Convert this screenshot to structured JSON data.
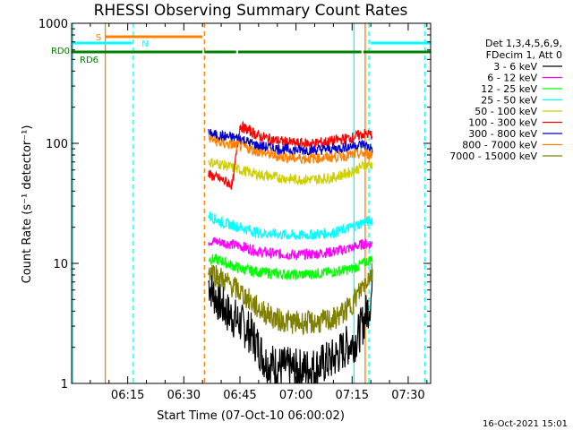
{
  "chart_data": {
    "type": "line",
    "title": "RHESSI Observing Summary Count Rates",
    "xlabel": "Start Time (07-Oct-10 06:00:02)",
    "ylabel": "Count Rate (s⁻¹ detector⁻¹)",
    "y_scale": "log",
    "ylim": [
      1,
      1000
    ],
    "xlim_minutes": [
      0,
      96
    ],
    "y_ticks": [
      {
        "value": 1,
        "label": "1"
      },
      {
        "value": 10,
        "label": "10"
      },
      {
        "value": 100,
        "label": "100"
      },
      {
        "value": 1000,
        "label": "1000"
      }
    ],
    "x_ticks": [
      {
        "value": 15,
        "label": "06:15"
      },
      {
        "value": 30,
        "label": "06:30"
      },
      {
        "value": 45,
        "label": "06:45"
      },
      {
        "value": 60,
        "label": "07:00"
      },
      {
        "value": 75,
        "label": "07:15"
      },
      {
        "value": 90,
        "label": "07:30"
      }
    ],
    "legend_header": [
      "Det 1,3,4,5,6,9,",
      "FDecim 1, Att 0"
    ],
    "legend_placement": "right",
    "series": [
      {
        "name": "3 - 6 keV",
        "color": "#000000",
        "points": [
          [
            36.6,
            7
          ],
          [
            38,
            5.5
          ],
          [
            40,
            4.5
          ],
          [
            42,
            3.8
          ],
          [
            45,
            3.2
          ],
          [
            48,
            2.6
          ],
          [
            50,
            2.0
          ],
          [
            52,
            1.5
          ],
          [
            55,
            1.4
          ],
          [
            60,
            1.3
          ],
          [
            65,
            1.35
          ],
          [
            70,
            1.6
          ],
          [
            74,
            2.1
          ],
          [
            76,
            2.3
          ],
          [
            78,
            3.2
          ],
          [
            79,
            4
          ],
          [
            80,
            5
          ],
          [
            80.5,
            6.5
          ]
        ]
      },
      {
        "name": "6 - 12 keV",
        "color": "#ff00ff",
        "points": [
          [
            36.6,
            15.5
          ],
          [
            40,
            15
          ],
          [
            45,
            14
          ],
          [
            50,
            12.5
          ],
          [
            55,
            12
          ],
          [
            60,
            11.8
          ],
          [
            65,
            12
          ],
          [
            70,
            12.5
          ],
          [
            75,
            13.5
          ],
          [
            78,
            14.5
          ],
          [
            80.5,
            14.5
          ]
        ]
      },
      {
        "name": "12 - 25 keV",
        "color": "#00ff00",
        "points": [
          [
            36.6,
            11
          ],
          [
            40,
            10.5
          ],
          [
            45,
            9
          ],
          [
            50,
            8.5
          ],
          [
            55,
            8.2
          ],
          [
            60,
            8
          ],
          [
            65,
            8.2
          ],
          [
            70,
            8.5
          ],
          [
            75,
            9
          ],
          [
            78,
            10
          ],
          [
            80.5,
            11
          ]
        ]
      },
      {
        "name": "25 - 50 keV",
        "color": "#00ffff",
        "points": [
          [
            36.6,
            25
          ],
          [
            40,
            22
          ],
          [
            45,
            20
          ],
          [
            50,
            18
          ],
          [
            55,
            17.5
          ],
          [
            60,
            17
          ],
          [
            65,
            17.5
          ],
          [
            70,
            18
          ],
          [
            75,
            20
          ],
          [
            78,
            22
          ],
          [
            80.5,
            23
          ]
        ]
      },
      {
        "name": "50 - 100 keV",
        "color": "#d0d000",
        "points": [
          [
            36.6,
            70
          ],
          [
            40,
            67
          ],
          [
            45,
            60
          ],
          [
            50,
            55
          ],
          [
            55,
            52
          ],
          [
            60,
            50
          ],
          [
            65,
            50
          ],
          [
            70,
            52
          ],
          [
            75,
            58
          ],
          [
            78,
            65
          ],
          [
            80.5,
            67
          ]
        ]
      },
      {
        "name": "100 - 300 keV",
        "color": "#ff0000",
        "points": [
          [
            36.6,
            55
          ],
          [
            40,
            50
          ],
          [
            43,
            45
          ],
          [
            45,
            140
          ],
          [
            48,
            125
          ],
          [
            50,
            115
          ],
          [
            55,
            105
          ],
          [
            60,
            100
          ],
          [
            65,
            100
          ],
          [
            70,
            105
          ],
          [
            75,
            112
          ],
          [
            78,
            120
          ],
          [
            80.5,
            118
          ]
        ]
      },
      {
        "name": "300 - 800 keV",
        "color": "#0000cc",
        "points": [
          [
            36.6,
            120
          ],
          [
            40,
            115
          ],
          [
            45,
            110
          ],
          [
            48,
            100
          ],
          [
            50,
            95
          ],
          [
            55,
            90
          ],
          [
            60,
            88
          ],
          [
            65,
            88
          ],
          [
            70,
            90
          ],
          [
            75,
            95
          ],
          [
            78,
            98
          ],
          [
            80.5,
            90
          ]
        ]
      },
      {
        "name": "800 - 7000 keV",
        "color": "#ff8000",
        "points": [
          [
            36.6,
            110
          ],
          [
            40,
            100
          ],
          [
            45,
            95
          ],
          [
            50,
            85
          ],
          [
            55,
            78
          ],
          [
            60,
            75
          ],
          [
            65,
            75
          ],
          [
            70,
            77
          ],
          [
            75,
            80
          ],
          [
            78,
            82
          ],
          [
            80.5,
            80
          ]
        ]
      },
      {
        "name": "7000 - 15000 keV",
        "color": "#808000",
        "points": [
          [
            36.6,
            9
          ],
          [
            40,
            7.5
          ],
          [
            45,
            5.8
          ],
          [
            50,
            4.2
          ],
          [
            55,
            3.4
          ],
          [
            60,
            3.2
          ],
          [
            65,
            3.2
          ],
          [
            70,
            3.4
          ],
          [
            74,
            4.2
          ],
          [
            77,
            5.8
          ],
          [
            79,
            7.5
          ],
          [
            80.5,
            8.5
          ]
        ]
      }
    ],
    "annotations": {
      "flags": [
        {
          "label": "S",
          "color": "#ff8000",
          "segments": [
            [
              9,
              35
            ]
          ]
        },
        {
          "label": "N",
          "color": "#00ffff",
          "segments": [
            [
              0,
              16
            ],
            [
              80,
              96
            ]
          ]
        },
        {
          "label": "RD0",
          "color": "#008000",
          "segments": [
            [
              0,
              35
            ],
            [
              35.5,
              44
            ],
            [
              44.5,
              77.5
            ],
            [
              78,
              96
            ]
          ]
        },
        {
          "label": "RD6",
          "color": "#008000",
          "segments": []
        }
      ],
      "vertical_lines": [
        {
          "x": 9,
          "color": "#ff8000",
          "style": "solid"
        },
        {
          "x": 16.5,
          "color": "#00ffff",
          "style": "dashed"
        },
        {
          "x": 35.5,
          "color": "#ff8000",
          "style": "dashed"
        },
        {
          "x": 0.3,
          "color": "#00ffff",
          "style": "solid"
        },
        {
          "x": 75.5,
          "color": "#00ffff",
          "style": "solid"
        },
        {
          "x": 78.5,
          "color": "#ff8000",
          "style": "solid"
        },
        {
          "x": 79.5,
          "color": "#00ffff",
          "style": "dashed"
        },
        {
          "x": 94.5,
          "color": "#00ffff",
          "style": "dashed"
        }
      ]
    },
    "footer_timestamp": "16-Oct-2021 15:01"
  }
}
